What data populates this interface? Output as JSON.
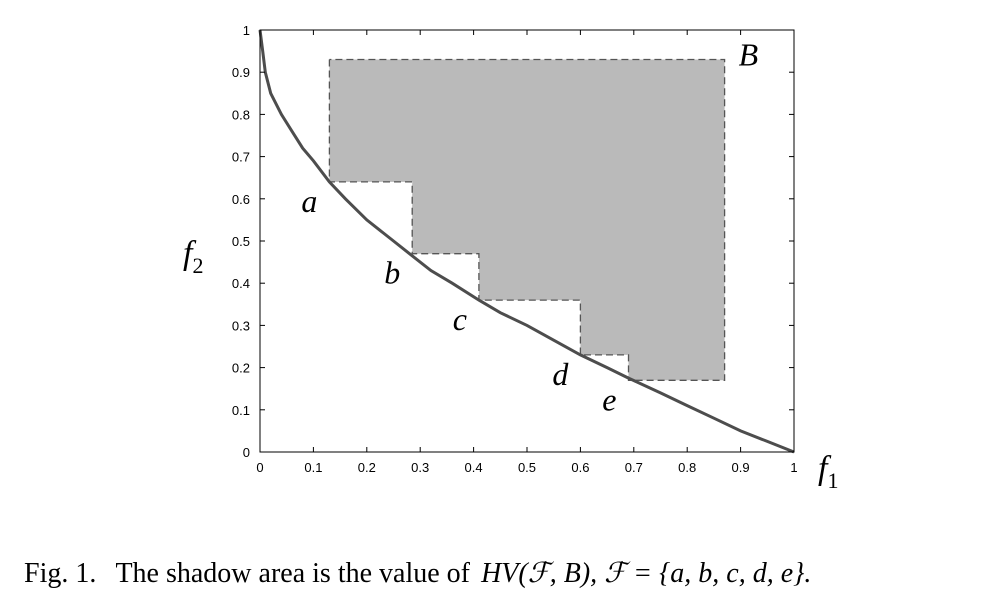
{
  "chart_data": {
    "type": "line",
    "xlabel": "f",
    "xlabel_sub": "1",
    "ylabel": "f",
    "ylabel_sub": "2",
    "xlim": [
      0,
      1
    ],
    "ylim": [
      0,
      1
    ],
    "xticks": [
      "0",
      "0.1",
      "0.2",
      "0.3",
      "0.4",
      "0.5",
      "0.6",
      "0.7",
      "0.8",
      "0.9",
      "1"
    ],
    "yticks": [
      "0",
      "0.1",
      "0.2",
      "0.3",
      "0.4",
      "0.5",
      "0.6",
      "0.7",
      "0.8",
      "0.9",
      "1"
    ],
    "grid": false,
    "front_curve": {
      "x": [
        0,
        0.005,
        0.01,
        0.02,
        0.04,
        0.06,
        0.08,
        0.1,
        0.13,
        0.16,
        0.2,
        0.25,
        0.28,
        0.32,
        0.36,
        0.41,
        0.45,
        0.5,
        0.55,
        0.6,
        0.65,
        0.69,
        0.75,
        0.8,
        0.85,
        0.9,
        0.95,
        1.0
      ],
      "y": [
        1.0,
        0.95,
        0.9,
        0.85,
        0.8,
        0.76,
        0.72,
        0.69,
        0.64,
        0.6,
        0.55,
        0.5,
        0.47,
        0.43,
        0.4,
        0.36,
        0.33,
        0.3,
        0.265,
        0.23,
        0.2,
        0.175,
        0.14,
        0.11,
        0.08,
        0.05,
        0.025,
        0.0
      ]
    },
    "points": [
      {
        "label": "a",
        "x": 0.13,
        "y": 0.64
      },
      {
        "label": "b",
        "x": 0.285,
        "y": 0.47
      },
      {
        "label": "c",
        "x": 0.41,
        "y": 0.36
      },
      {
        "label": "d",
        "x": 0.6,
        "y": 0.23
      },
      {
        "label": "e",
        "x": 0.69,
        "y": 0.17
      }
    ],
    "reference_point": {
      "label": "B",
      "x": 0.87,
      "y": 0.93
    },
    "shaded_region_color": "#bababa",
    "curve_color": "#4d4d4d",
    "dashed_color": "#555555"
  },
  "caption": {
    "prefix": "Fig. 1.",
    "text": "The shadow area is the value of",
    "math": "HV(ℱ, B), ℱ = {a, b, c, d, e}."
  }
}
